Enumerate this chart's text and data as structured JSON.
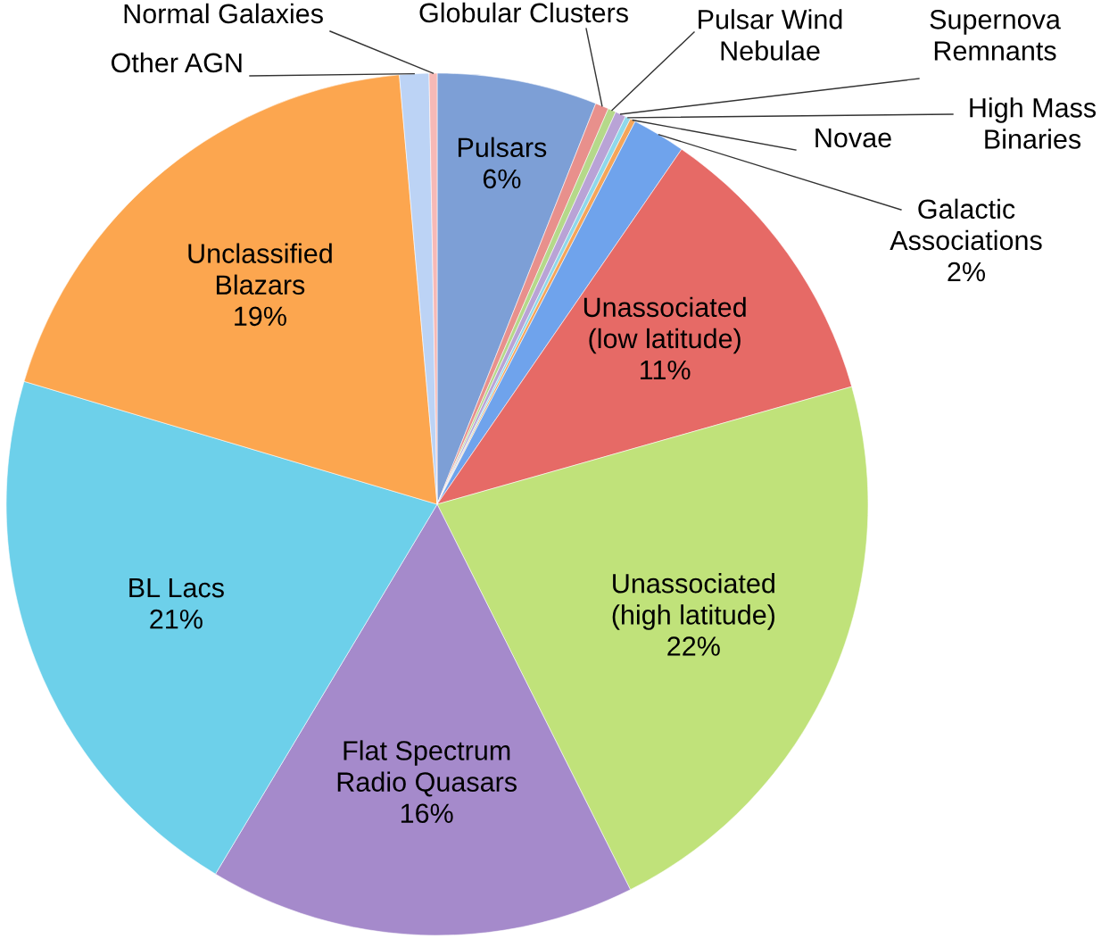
{
  "chart_data": {
    "type": "pie",
    "categories": [
      "Pulsars",
      "Globular Clusters",
      "Pulsar Wind\nNebulae",
      "Supernova\nRemnants",
      "High Mass\nBinaries",
      "Novae",
      "Galactic\nAssociations",
      "Unassociated\n(low latitude)",
      "Unassociated\n(high latitude)",
      "Flat Spectrum\nRadio Quasars",
      "BL Lacs",
      "Unclassified\nBlazars",
      "Other AGN",
      "Normal Galaxies"
    ],
    "values": [
      6,
      0.5,
      0.3,
      0.4,
      0.2,
      0.2,
      2,
      11,
      22,
      16,
      21,
      19,
      1.1,
      0.3
    ],
    "value_labels": [
      "6%",
      null,
      null,
      null,
      null,
      null,
      "2%",
      "11%",
      "22%",
      "16%",
      "21%",
      "19%",
      null,
      null
    ],
    "colors": [
      "#7d9fd6",
      "#e8908c",
      "#b5d98a",
      "#b9a3d6",
      "#8fd8ea",
      "#f5a55a",
      "#6fa3ec",
      "#e66a66",
      "#c0e27a",
      "#a58acb",
      "#6dd0ea",
      "#fca64f",
      "#bcd3f5",
      "#f7b9b6"
    ]
  }
}
